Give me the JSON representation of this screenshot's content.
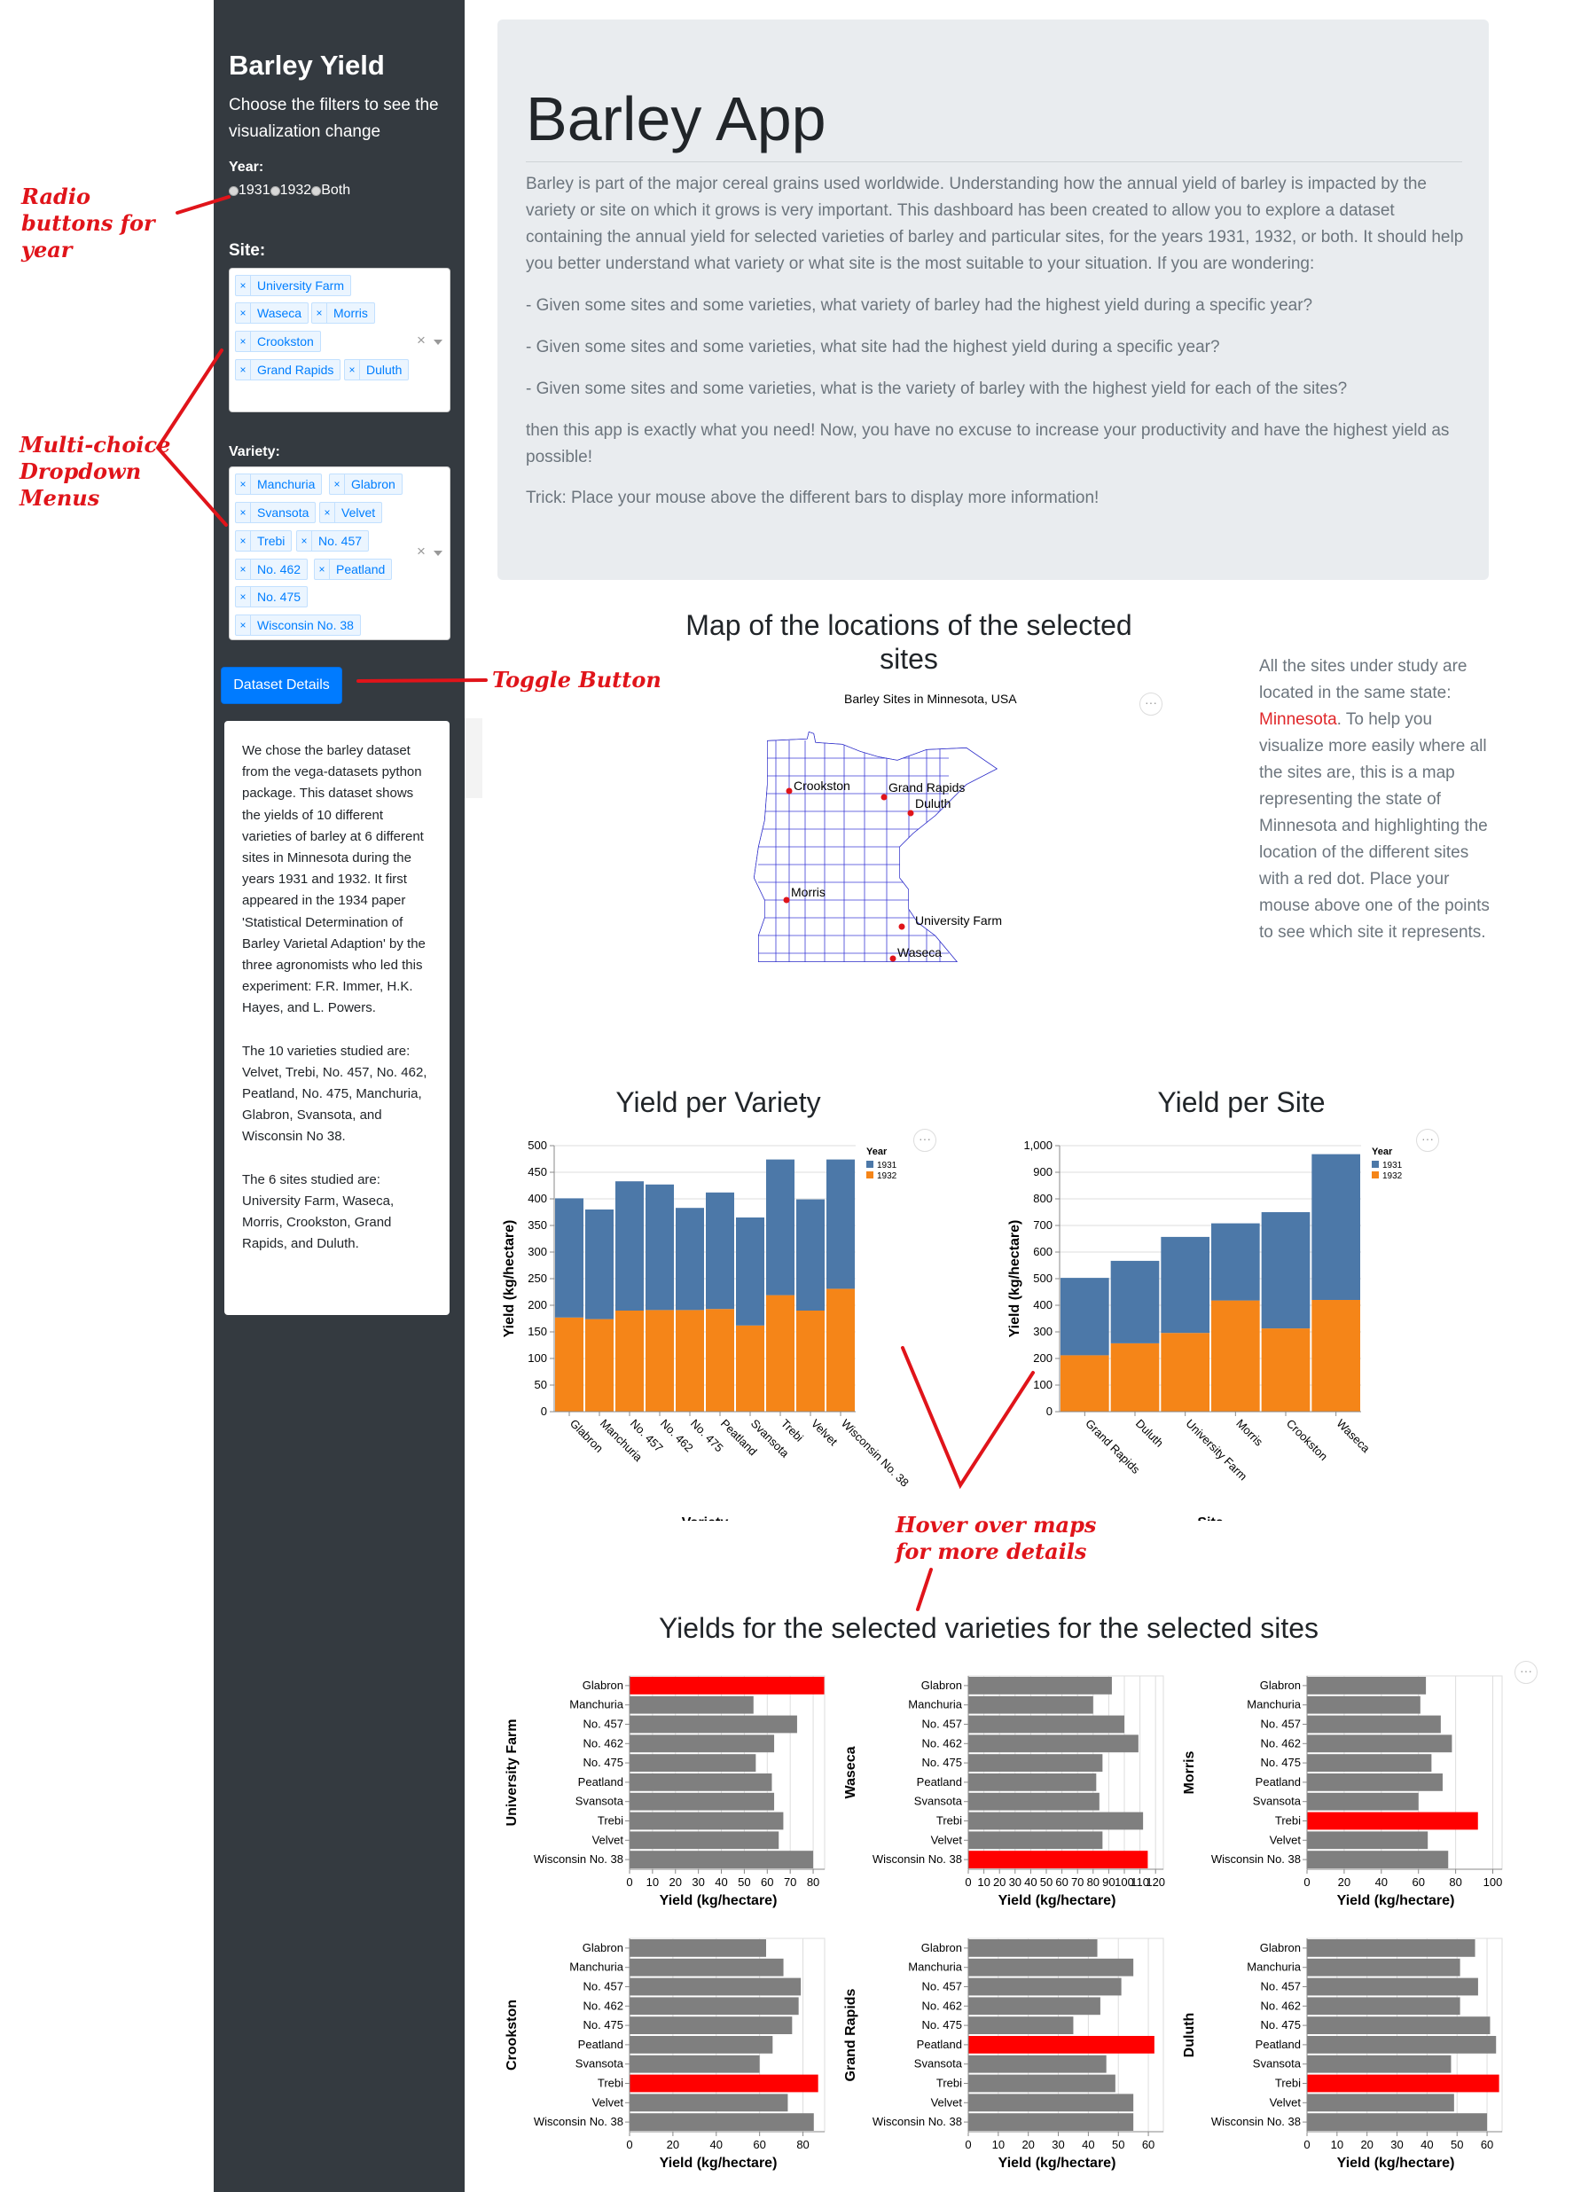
{
  "sidebar": {
    "title": "Barley Yield",
    "subtitle": "Choose the filters to see the visualization change",
    "year_label": "Year:",
    "year_options": [
      "1931",
      "1932",
      "Both"
    ],
    "site_label": "Site:",
    "site_tags": [
      "University Farm",
      "Waseca",
      "Morris",
      "Crookston",
      "Grand Rapids",
      "Duluth"
    ],
    "variety_label": "Variety:",
    "variety_tags": [
      "Manchuria",
      "Glabron",
      "Svansota",
      "Velvet",
      "Trebi",
      "No. 457",
      "No. 462",
      "Peatland",
      "No. 475",
      "Wisconsin No. 38"
    ],
    "details_button": "Dataset Details",
    "details_p1": "We chose the barley dataset from the vega-datasets python package. This dataset shows the yields of 10 different varieties of barley at 6 different sites in Minnesota during the years 1931 and 1932. It first appeared in the 1934 paper 'Statistical Determination of Barley Varietal Adaption' by the three agronomists who led this experiment: F.R. Immer, H.K. Hayes, and L. Powers.",
    "details_p2": "The 10 varieties studied are: Velvet, Trebi, No. 457, No. 462, Peatland, No. 475, Manchuria, Glabron, Svansota, and Wisconsin No 38.",
    "details_p3": "The 6 sites studied are: University Farm, Waseca, Morris, Crookston, Grand Rapids, and Duluth."
  },
  "jumbotron": {
    "title": "Barley App",
    "intro": "Barley is part of the major cereal grains used worldwide. Understanding how the annual yield of barley is impacted by the variety or site on which it grows is very important. This dashboard has been created to allow you to explore a dataset containing the annual yield for selected varieties of barley and particular sites, for the years 1931, 1932, or both. It should help you better understand what variety or what site is the most suitable to your situation. If you are wondering:",
    "q1": "- Given some sites and some varieties, what variety of barley had the highest yield during a specific year?",
    "q2": "- Given some sites and some varieties, what site had the highest yield during a specific year?",
    "q3": "- Given some sites and some varieties, what is the variety of barley with the highest yield for each of the sites?",
    "outro": "then this app is exactly what you need! Now, you have no excuse to increase your productivity and have the highest yield as possible!",
    "trick": "Trick: Place your mouse above the different bars to display more information!"
  },
  "map_section": {
    "title": "Map of the locations of the selected sites",
    "chart_title": "Barley Sites in Minnesota, USA",
    "desc_pre": "All the sites under study are located in the same state: ",
    "desc_state": "Minnesota",
    "desc_post": ". To help you visualize more easily where all the sites are, this is a map representing the state of Minnesota and highlighting the location of the different sites with a red dot. Place your mouse above one of the points to see which site it represents.",
    "site_labels": [
      "Crookston",
      "Grand Rapids",
      "Duluth",
      "Morris",
      "University Farm",
      "Waseca"
    ],
    "dot_color": "#e0141a"
  },
  "menu_glyph": "···",
  "colors": {
    "y1931": "#4c78a8",
    "y1932": "#f58518",
    "bar_gray": "#7f7f7f",
    "bar_highlight": "#ff0000"
  },
  "annotations": {
    "radio": "Radio buttons for year",
    "dropdown": "Multi-choice Dropdown Menus",
    "toggle": "Toggle Button",
    "hover": "Hover over maps for more details"
  },
  "chart_data": [
    {
      "id": "variety",
      "type": "bar",
      "stacked": true,
      "title": "Yield per Variety",
      "xlabel": "Variety",
      "ylabel": "Yield (kg/hectare)",
      "ylim": [
        0,
        500
      ],
      "yticks": [
        0,
        50,
        100,
        150,
        200,
        250,
        300,
        350,
        400,
        450,
        500
      ],
      "legend_title": "Year",
      "legend_position": "top-right",
      "categories": [
        "Glabron",
        "Manchuria",
        "No. 457",
        "No. 462",
        "No. 475",
        "Peatland",
        "Svansota",
        "Trebi",
        "Velvet",
        "Wisconsin No. 38"
      ],
      "series": [
        {
          "name": "1932",
          "values": [
            177,
            174,
            190,
            191,
            191,
            193,
            162,
            219,
            190,
            231
          ]
        },
        {
          "name": "1931",
          "values": [
            224,
            206,
            243,
            236,
            192,
            219,
            203,
            255,
            209,
            243
          ]
        }
      ]
    },
    {
      "id": "site",
      "type": "bar",
      "stacked": true,
      "title": "Yield per Site",
      "xlabel": "Site",
      "ylabel": "Yield (kg/hectare)",
      "ylim": [
        0,
        1000
      ],
      "yticks": [
        0,
        100,
        200,
        300,
        400,
        500,
        600,
        700,
        800,
        900,
        1000
      ],
      "yticklabels": [
        "0",
        "100",
        "200",
        "300",
        "400",
        "500",
        "600",
        "700",
        "800",
        "900",
        "1,000"
      ],
      "legend_title": "Year",
      "legend_position": "top-right",
      "categories": [
        "Grand Rapids",
        "Duluth",
        "University Farm",
        "Morris",
        "Crookston",
        "Waseca"
      ],
      "series": [
        {
          "name": "1932",
          "values": [
            212,
            257,
            296,
            418,
            313,
            420
          ]
        },
        {
          "name": "1931",
          "values": [
            291,
            310,
            361,
            290,
            437,
            548
          ]
        }
      ]
    },
    {
      "id": "facets",
      "type": "bar",
      "orientation": "horizontal",
      "title": "Yields for the selected varieties for the selected sites",
      "xlabel": "Yield (kg/hectare)",
      "categories": [
        "Glabron",
        "Manchuria",
        "No. 457",
        "No. 462",
        "No. 475",
        "Peatland",
        "Svansota",
        "Trebi",
        "Velvet",
        "Wisconsin No. 38"
      ],
      "facets": [
        {
          "site": "University Farm",
          "xmax": 85,
          "xticks": [
            0,
            10,
            20,
            30,
            40,
            50,
            60,
            70,
            80
          ],
          "values": [
            85,
            54,
            73,
            63,
            55,
            62,
            63,
            67,
            65,
            80
          ],
          "highlight": 0
        },
        {
          "site": "Waseca",
          "xmax": 125,
          "xticks": [
            0,
            10,
            20,
            30,
            40,
            50,
            60,
            70,
            80,
            90,
            100,
            110,
            120
          ],
          "values": [
            92,
            80,
            100,
            109,
            86,
            82,
            84,
            112,
            86,
            115
          ],
          "highlight": 9
        },
        {
          "site": "Morris",
          "xmax": 105,
          "xticks": [
            0,
            20,
            40,
            60,
            80,
            100
          ],
          "values": [
            64,
            61,
            72,
            78,
            67,
            73,
            60,
            92,
            65,
            76
          ],
          "highlight": 7
        },
        {
          "site": "Crookston",
          "xmax": 90,
          "xticks": [
            0,
            20,
            40,
            60,
            80
          ],
          "values": [
            63,
            71,
            79,
            78,
            75,
            66,
            60,
            87,
            73,
            85
          ],
          "highlight": 7
        },
        {
          "site": "Grand Rapids",
          "xmax": 65,
          "xticks": [
            0,
            10,
            20,
            30,
            40,
            50,
            60
          ],
          "values": [
            43,
            55,
            51,
            44,
            35,
            62,
            46,
            49,
            55,
            55
          ],
          "highlight": 5
        },
        {
          "site": "Duluth",
          "xmax": 65,
          "xticks": [
            0,
            10,
            20,
            30,
            40,
            50,
            60
          ],
          "values": [
            56,
            51,
            57,
            51,
            61,
            63,
            48,
            64,
            49,
            60
          ],
          "highlight": 7
        }
      ]
    }
  ]
}
